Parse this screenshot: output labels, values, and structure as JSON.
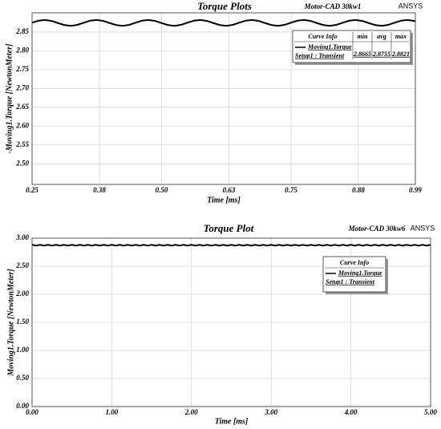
{
  "chart_data": [
    {
      "type": "line",
      "title": "Torque Plots",
      "subtitle": "Motor-CAD 30kw1",
      "brand": "ANSYS",
      "x_label": "Time [ms]",
      "y_label": "-Moving1.Torque [NewtonMeter]",
      "x": [
        0.25,
        0.2625,
        0.275,
        0.2875,
        0.3,
        0.3125,
        0.325,
        0.3375,
        0.35,
        0.3625,
        0.375,
        0.3875,
        0.4,
        0.4125,
        0.425,
        0.4375,
        0.45,
        0.4625,
        0.475,
        0.4875,
        0.5,
        0.5125,
        0.525,
        0.5375,
        0.55,
        0.5625,
        0.575,
        0.5875,
        0.6,
        0.6125,
        0.625,
        0.6375,
        0.65,
        0.6625,
        0.675,
        0.6875,
        0.7,
        0.7125,
        0.725,
        0.7375,
        0.75,
        0.7625,
        0.775,
        0.7875,
        0.8,
        0.8125,
        0.825,
        0.8375,
        0.85,
        0.8625,
        0.875,
        0.8875,
        0.9,
        0.9125,
        0.925,
        0.9375,
        0.95,
        0.9625,
        0.975,
        0.9875,
        0.99
      ],
      "series": [
        {
          "name": "Moving1.Torque",
          "setup": "Setup1 : Transient",
          "color": "#000000",
          "stats": [
            2.8665,
            2.8755,
            2.8821
          ],
          "values": [
            2.8748,
            2.8802,
            2.8821,
            2.8795,
            2.8738,
            2.8685,
            2.8665,
            2.8691,
            2.8748,
            2.8802,
            2.8821,
            2.8795,
            2.8738,
            2.8685,
            2.8665,
            2.8691,
            2.8748,
            2.8802,
            2.8821,
            2.8795,
            2.8738,
            2.8685,
            2.8665,
            2.8691,
            2.8748,
            2.8802,
            2.8821,
            2.8795,
            2.8738,
            2.8685,
            2.8665,
            2.8691,
            2.8748,
            2.8802,
            2.8821,
            2.8795,
            2.8738,
            2.8685,
            2.8665,
            2.8691,
            2.8748,
            2.8802,
            2.8821,
            2.8795,
            2.8738,
            2.8685,
            2.8665,
            2.8691,
            2.8748,
            2.8802,
            2.8821,
            2.8795,
            2.8738,
            2.8685,
            2.8665,
            2.8691,
            2.8748,
            2.8802,
            2.8821,
            2.8795,
            2.8785
          ]
        }
      ],
      "legend_title": "Curve Info",
      "legend_columns": [
        "min",
        "avg",
        "max"
      ],
      "legend": "upper right",
      "grid": true,
      "xlim": [
        0.25,
        0.99
      ],
      "xticks": [
        0.25,
        0.38,
        {
          "value": 0.5,
          "label": "0.50"
        },
        0.63,
        0.75,
        0.88,
        0.99
      ],
      "ylim": [
        2.445,
        2.901
      ],
      "yticks": [
        {
          "value": 2.5,
          "label": "2.50"
        },
        2.55,
        {
          "value": 2.6,
          "label": "2.60"
        },
        2.65,
        {
          "value": 2.7,
          "label": "2.70"
        },
        2.75,
        {
          "value": 2.8,
          "label": "2.80"
        },
        2.85
      ]
    },
    {
      "type": "line",
      "title": "Torque Plot",
      "subtitle": "Motor-CAD 30kw6",
      "brand": "ANSYS",
      "x_label": "Time [ms]",
      "y_label": "Moving1.Torque [NewtonMeter]",
      "x": [
        0,
        0.05,
        0.1,
        0.15,
        0.2,
        0.25,
        0.3,
        0.35,
        0.4,
        0.45,
        0.5,
        0.55,
        0.6,
        0.65,
        0.7,
        0.75,
        0.8,
        0.85,
        0.9,
        0.95,
        1,
        1.05,
        1.1,
        1.15,
        1.2,
        1.25,
        1.3,
        1.35,
        1.4,
        1.45,
        1.5,
        1.55,
        1.6,
        1.65,
        1.7,
        1.75,
        1.8,
        1.85,
        1.9,
        1.95,
        2,
        2.05,
        2.1,
        2.15,
        2.2,
        2.25,
        2.3,
        2.35,
        2.4,
        2.45,
        2.5,
        2.55,
        2.6,
        2.65,
        2.7,
        2.75,
        2.8,
        2.85,
        2.9,
        2.95,
        3,
        3.05,
        3.1,
        3.15,
        3.2,
        3.25,
        3.3,
        3.35,
        3.4,
        3.45,
        3.5,
        3.55,
        3.6,
        3.65,
        3.7,
        3.75,
        3.8,
        3.85,
        3.9,
        3.95,
        4,
        4.05,
        4.1,
        4.15,
        4.2,
        4.25,
        4.3,
        4.35,
        4.4,
        4.45,
        4.5,
        4.55,
        4.6,
        4.65,
        4.7,
        4.75,
        4.8,
        4.85,
        4.9,
        4.95,
        5
      ],
      "series": [
        {
          "name": "Moving1.Torque",
          "setup": "Setup1 : Transient",
          "color": "#000000",
          "values": [
            2.8821,
            2.8665,
            2.8821,
            2.8665,
            2.8821,
            2.8665,
            2.8821,
            2.8665,
            2.8821,
            2.8665,
            2.8821,
            2.8665,
            2.8821,
            2.8665,
            2.8821,
            2.8665,
            2.8821,
            2.8665,
            2.8821,
            2.8665,
            2.8821,
            2.8665,
            2.8821,
            2.8665,
            2.8821,
            2.8665,
            2.8821,
            2.8665,
            2.8821,
            2.8665,
            2.8821,
            2.8665,
            2.8821,
            2.8665,
            2.8821,
            2.8665,
            2.8821,
            2.8665,
            2.8821,
            2.8665,
            2.8821,
            2.8665,
            2.8821,
            2.8665,
            2.8821,
            2.8665,
            2.8821,
            2.8665,
            2.8821,
            2.8665,
            2.8821,
            2.8665,
            2.8821,
            2.8665,
            2.8821,
            2.8665,
            2.8821,
            2.8665,
            2.8821,
            2.8665,
            2.8821,
            2.8665,
            2.8821,
            2.8665,
            2.8821,
            2.8665,
            2.8821,
            2.8665,
            2.8821,
            2.8665,
            2.8821,
            2.8665,
            2.8821,
            2.8665,
            2.8821,
            2.8665,
            2.8821,
            2.8665,
            2.8821,
            2.8665,
            2.8821,
            2.8665,
            2.8821,
            2.8665,
            2.8821,
            2.8665,
            2.8821,
            2.8665,
            2.8821,
            2.8665,
            2.8821,
            2.8665,
            2.8821,
            2.8665,
            2.8821,
            2.8665,
            2.8821,
            2.8665,
            2.8821,
            2.8665,
            2.8821
          ]
        }
      ],
      "legend_title": "Curve Info",
      "legend": "upper right",
      "grid": true,
      "xlim": [
        0,
        5
      ],
      "xticks": [
        {
          "value": 0,
          "label": "0.00"
        },
        {
          "value": 1,
          "label": "1.00"
        },
        {
          "value": 2,
          "label": "2.00"
        },
        {
          "value": 3,
          "label": "3.00"
        },
        {
          "value": 4,
          "label": "4.00"
        },
        {
          "value": 5,
          "label": "5.00"
        }
      ],
      "ylim": [
        0,
        3
      ],
      "yticks": [
        {
          "value": 0,
          "label": "0.00"
        },
        {
          "value": 0.5,
          "label": "0.50"
        },
        {
          "value": 1,
          "label": "1.00"
        },
        {
          "value": 1.5,
          "label": "1.50"
        },
        {
          "value": 2,
          "label": "2.00"
        },
        {
          "value": 2.5,
          "label": "2.50"
        },
        {
          "value": 3,
          "label": "3.00"
        }
      ]
    }
  ]
}
